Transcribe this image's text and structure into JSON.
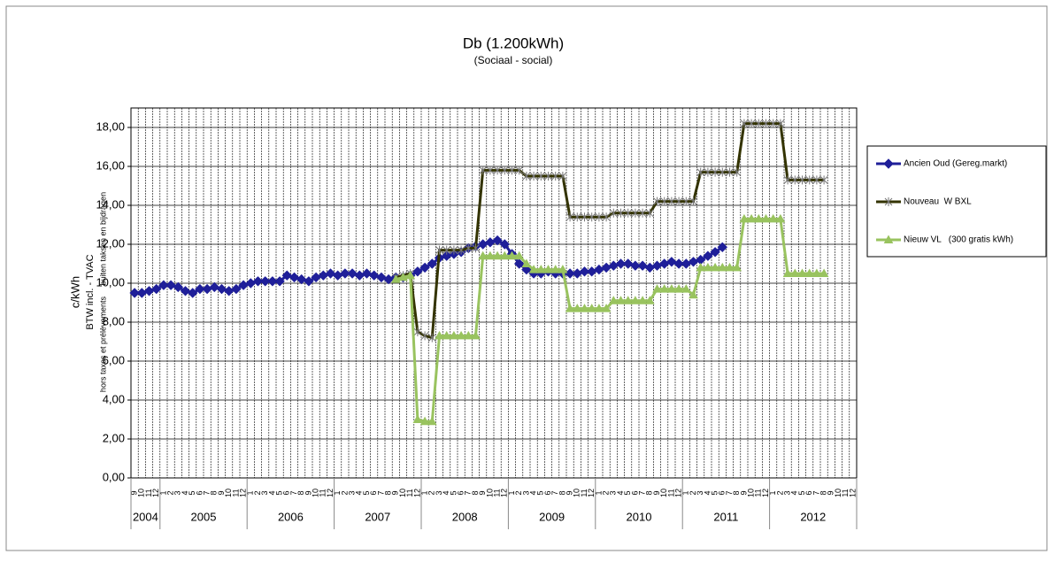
{
  "chart_data": {
    "type": "line",
    "title": "Db (1.200kWh)",
    "subtitle": "(Sociaal - social)",
    "y_label": [
      "c/kWh",
      "BTW incl. - TVAC",
      "hors taxes et prélèvements     buiten taksen en bijdragen"
    ],
    "categories": [
      "9",
      "10",
      "11",
      "12",
      "1",
      "2",
      "3",
      "4",
      "5",
      "6",
      "7",
      "8",
      "9",
      "10",
      "11",
      "12",
      "1",
      "2",
      "3",
      "4",
      "5",
      "6",
      "7",
      "8",
      "9",
      "10",
      "11",
      "12",
      "1",
      "2",
      "3",
      "4",
      "5",
      "6",
      "7",
      "8",
      "9",
      "10",
      "11",
      "12",
      "1",
      "2",
      "3",
      "4",
      "5",
      "6",
      "7",
      "8",
      "9",
      "10",
      "11",
      "12",
      "1",
      "2",
      "3",
      "4",
      "5",
      "6",
      "7",
      "8",
      "9",
      "10",
      "11",
      "12",
      "1",
      "2",
      "3",
      "4",
      "5",
      "6",
      "7",
      "8",
      "9",
      "10",
      "11",
      "12",
      "1",
      "2",
      "3",
      "4",
      "5",
      "6",
      "7",
      "8",
      "9",
      "10",
      "11",
      "12",
      "1",
      "2",
      "3",
      "4",
      "5",
      "6",
      "7",
      "8",
      "9",
      "10",
      "11",
      "12"
    ],
    "year_labels": [
      "2004",
      "2005",
      "2006",
      "2007",
      "2008",
      "2009",
      "2010",
      "2011",
      "2012"
    ],
    "series": [
      {
        "name": "Ancien Oud (Gereg.markt)",
        "color": "#1f1f99",
        "marker": "diamond",
        "values": [
          9.5,
          9.5,
          9.6,
          9.7,
          9.9,
          9.9,
          9.8,
          9.6,
          9.5,
          9.7,
          9.7,
          9.8,
          9.7,
          9.6,
          9.7,
          9.9,
          10.0,
          10.1,
          10.1,
          10.1,
          10.1,
          10.4,
          10.3,
          10.2,
          10.1,
          10.3,
          10.4,
          10.5,
          10.4,
          10.5,
          10.5,
          10.4,
          10.5,
          10.4,
          10.3,
          10.2,
          10.3,
          10.3,
          10.4,
          10.6,
          10.8,
          11.0,
          11.3,
          11.4,
          11.5,
          11.6,
          11.8,
          11.9,
          12.0,
          12.1,
          12.2,
          12.0,
          11.5,
          11.0,
          10.7,
          10.5,
          10.5,
          10.6,
          10.5,
          10.5,
          10.5,
          10.5,
          10.6,
          10.6,
          10.7,
          10.8,
          10.9,
          11.0,
          11.0,
          10.9,
          10.9,
          10.8,
          10.9,
          11.0,
          11.1,
          11.0,
          11.0,
          11.1,
          11.2,
          11.4,
          11.6,
          11.85,
          null,
          null,
          null,
          null,
          null,
          null,
          null,
          null,
          null,
          null,
          null,
          null,
          null,
          null,
          null,
          null,
          null,
          null
        ]
      },
      {
        "name": "Nouveau  W BXL",
        "color": "#333300",
        "marker": "star",
        "values": [
          null,
          null,
          null,
          null,
          null,
          null,
          null,
          null,
          null,
          null,
          null,
          null,
          null,
          null,
          null,
          null,
          null,
          null,
          null,
          null,
          null,
          null,
          null,
          null,
          null,
          null,
          null,
          null,
          null,
          null,
          null,
          null,
          null,
          null,
          null,
          null,
          10.3,
          10.4,
          10.5,
          7.5,
          7.3,
          7.2,
          11.7,
          11.7,
          11.7,
          11.7,
          11.8,
          11.8,
          15.8,
          15.8,
          15.8,
          15.8,
          15.8,
          15.8,
          15.5,
          15.5,
          15.5,
          15.5,
          15.5,
          15.5,
          13.4,
          13.4,
          13.4,
          13.4,
          13.4,
          13.4,
          13.6,
          13.6,
          13.6,
          13.6,
          13.6,
          13.6,
          14.2,
          14.2,
          14.2,
          14.2,
          14.2,
          14.2,
          15.7,
          15.7,
          15.7,
          15.7,
          15.7,
          15.7,
          18.2,
          18.2,
          18.2,
          18.2,
          18.2,
          18.2,
          15.3,
          15.3,
          15.3,
          15.3,
          15.3,
          15.3,
          null,
          null,
          null,
          null
        ]
      },
      {
        "name": "Nieuw VL   (300 gratis kWh)",
        "color": "#99c35f",
        "marker": "triangle",
        "values": [
          null,
          null,
          null,
          null,
          null,
          null,
          null,
          null,
          null,
          null,
          null,
          null,
          null,
          null,
          null,
          null,
          null,
          null,
          null,
          null,
          null,
          null,
          null,
          null,
          null,
          null,
          null,
          null,
          null,
          null,
          null,
          null,
          null,
          null,
          null,
          null,
          10.2,
          10.3,
          10.4,
          3.0,
          2.9,
          2.9,
          7.3,
          7.3,
          7.3,
          7.3,
          7.3,
          7.3,
          11.4,
          11.4,
          11.4,
          11.4,
          11.4,
          11.4,
          11.0,
          10.7,
          10.7,
          10.7,
          10.7,
          10.7,
          8.7,
          8.7,
          8.7,
          8.7,
          8.7,
          8.7,
          9.1,
          9.1,
          9.1,
          9.1,
          9.1,
          9.1,
          9.7,
          9.7,
          9.7,
          9.7,
          9.7,
          9.4,
          10.8,
          10.8,
          10.8,
          10.8,
          10.8,
          10.8,
          13.3,
          13.3,
          13.3,
          13.3,
          13.3,
          13.3,
          10.5,
          10.5,
          10.5,
          10.5,
          10.5,
          10.5,
          null,
          null,
          null,
          null
        ]
      }
    ],
    "ylim": [
      0,
      19
    ],
    "yticks": [
      {
        "value": 0,
        "label": "0,00"
      },
      {
        "value": 2,
        "label": "2,00"
      },
      {
        "value": 4,
        "label": "4,00"
      },
      {
        "value": 6,
        "label": "6,00"
      },
      {
        "value": 8,
        "label": "8,00"
      },
      {
        "value": 10,
        "label": "10,00"
      },
      {
        "value": 12,
        "label": "12,00"
      },
      {
        "value": 14,
        "label": "14,00"
      },
      {
        "value": 16,
        "label": "16,00"
      },
      {
        "value": 18,
        "label": "18,00"
      }
    ],
    "grid": true,
    "legend": "right"
  }
}
